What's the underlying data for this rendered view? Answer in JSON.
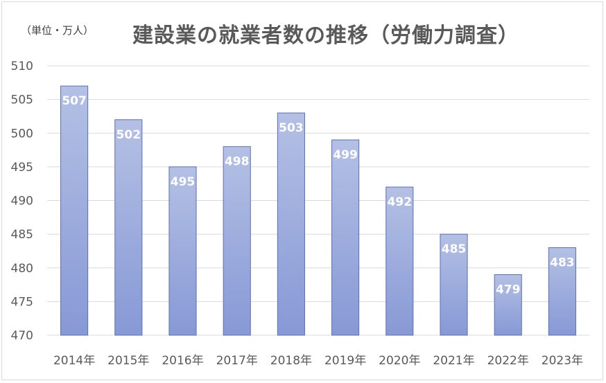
{
  "chart_data": {
    "type": "bar",
    "title": "建設業の就業者数の推移（労働力調査）",
    "unit_label": "（単位・万人）",
    "xlabel": "",
    "ylabel": "",
    "categories": [
      "2014年",
      "2015年",
      "2016年",
      "2017年",
      "2018年",
      "2019年",
      "2020年",
      "2021年",
      "2022年",
      "2023年"
    ],
    "values": [
      507,
      502,
      495,
      498,
      503,
      499,
      492,
      485,
      479,
      483
    ],
    "data_labels": [
      "507",
      "502",
      "495",
      "498",
      "503",
      "499",
      "492",
      "485",
      "479",
      "483"
    ],
    "ylim": [
      470,
      510
    ],
    "y_ticks": [
      470,
      475,
      480,
      485,
      490,
      495,
      500,
      505,
      510
    ],
    "y_tick_labels": [
      "470",
      "475",
      "480",
      "485",
      "490",
      "495",
      "500",
      "505",
      "510"
    ],
    "grid": true,
    "legend": "none",
    "colors": {
      "bar_top": "#b4c0e4",
      "bar_bottom": "#8799d6",
      "bar_edge": "#5b6fb3",
      "grid": "#d9d9d9",
      "text": "#595959"
    }
  }
}
